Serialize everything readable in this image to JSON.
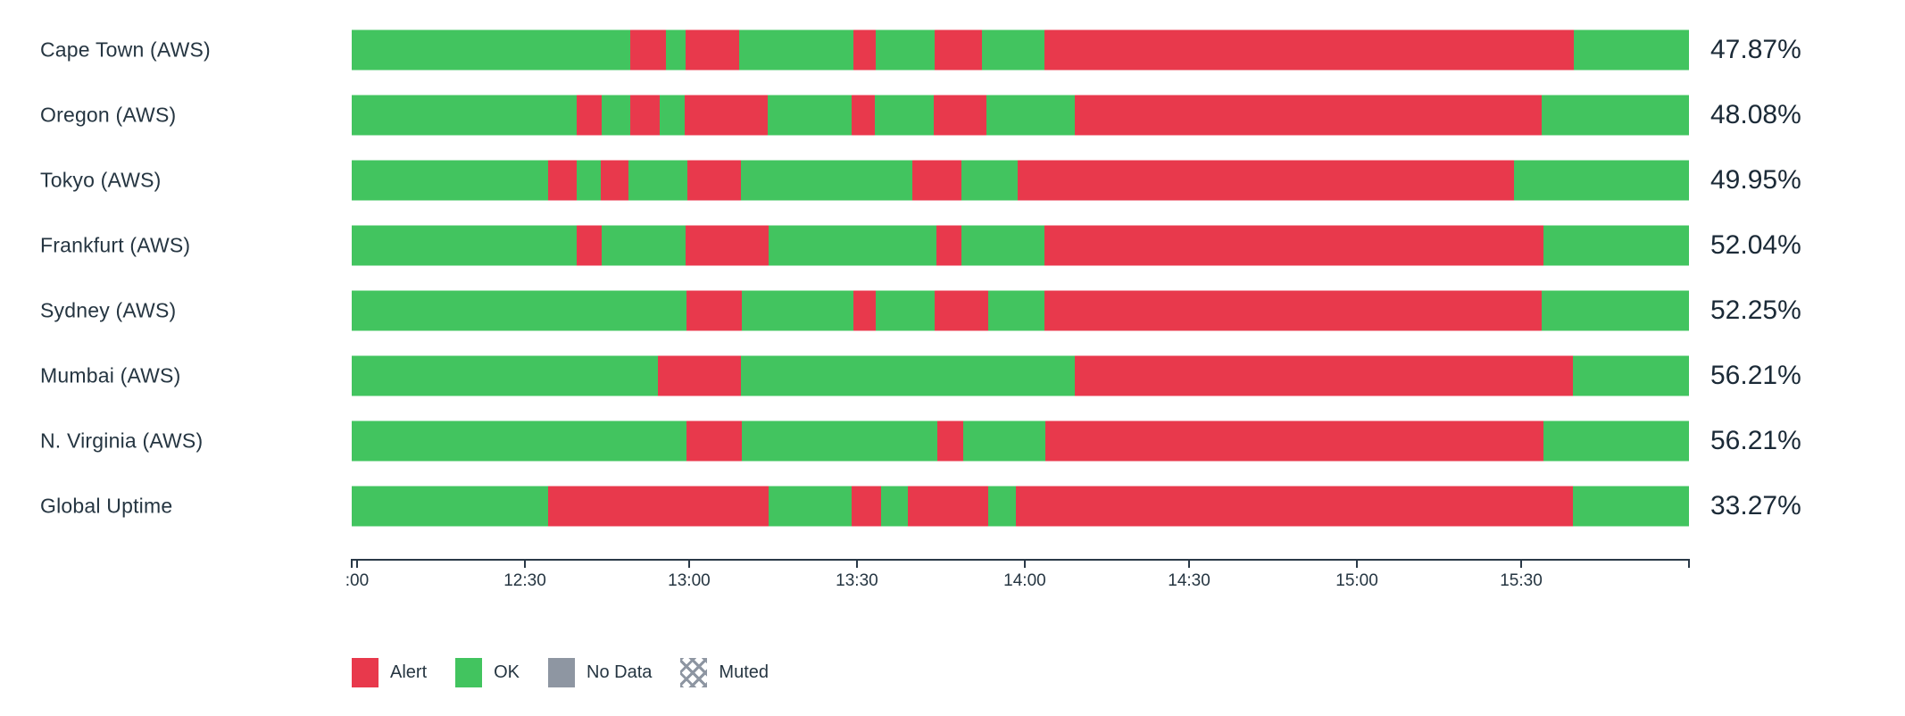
{
  "colors": {
    "alert": "#e8394c",
    "ok": "#42c45f",
    "no_data": "#8e96a2",
    "muted_hatch": "#8e96a2",
    "text": "#253541",
    "value_text": "#1b2a37",
    "axis": "#2a3947"
  },
  "chart_data": {
    "type": "bar",
    "subtype": "horizontal-status-timeline",
    "title": "",
    "xlabel": "",
    "ylabel": "",
    "legend_position": "bottom",
    "grid": false,
    "categories": [
      "Cape Town (AWS)",
      "Oregon (AWS)",
      "Tokyo (AWS)",
      "Frankfurt (AWS)",
      "Sydney (AWS)",
      "Mumbai (AWS)",
      "N. Virginia (AWS)",
      "Global Uptime"
    ],
    "uptime_values": [
      "47.87%",
      "48.08%",
      "49.95%",
      "52.04%",
      "52.25%",
      "56.21%",
      "56.21%",
      "33.27%"
    ],
    "rows": [
      {
        "label": "Cape Town (AWS)",
        "uptime": "47.87%",
        "segments": [
          [
            "ok",
            20.8
          ],
          [
            "alert",
            2.7
          ],
          [
            "ok",
            1.5
          ],
          [
            "alert",
            4.0
          ],
          [
            "ok",
            8.5
          ],
          [
            "alert",
            1.7
          ],
          [
            "ok",
            4.4
          ],
          [
            "alert",
            3.5
          ],
          [
            "ok",
            4.7
          ],
          [
            "alert",
            39.6
          ],
          [
            "ok",
            8.6
          ]
        ]
      },
      {
        "label": "Oregon (AWS)",
        "uptime": "48.08%",
        "segments": [
          [
            "ok",
            16.8
          ],
          [
            "alert",
            1.9
          ],
          [
            "ok",
            2.1
          ],
          [
            "alert",
            2.2
          ],
          [
            "ok",
            1.9
          ],
          [
            "alert",
            6.2
          ],
          [
            "ok",
            6.3
          ],
          [
            "alert",
            1.7
          ],
          [
            "ok",
            4.4
          ],
          [
            "alert",
            4.0
          ],
          [
            "ok",
            6.6
          ],
          [
            "alert",
            34.9
          ],
          [
            "ok",
            11.0
          ]
        ]
      },
      {
        "label": "Tokyo (AWS)",
        "uptime": "49.95%",
        "segments": [
          [
            "ok",
            14.7
          ],
          [
            "alert",
            2.1
          ],
          [
            "ok",
            1.8
          ],
          [
            "alert",
            2.1
          ],
          [
            "ok",
            4.4
          ],
          [
            "alert",
            4.0
          ],
          [
            "ok",
            12.8
          ],
          [
            "alert",
            3.7
          ],
          [
            "ok",
            4.2
          ],
          [
            "alert",
            37.1
          ],
          [
            "ok",
            13.1
          ]
        ]
      },
      {
        "label": "Frankfurt (AWS)",
        "uptime": "52.04%",
        "segments": [
          [
            "ok",
            16.8
          ],
          [
            "alert",
            1.9
          ],
          [
            "ok",
            6.3
          ],
          [
            "alert",
            6.2
          ],
          [
            "ok",
            12.5
          ],
          [
            "alert",
            1.9
          ],
          [
            "ok",
            6.2
          ],
          [
            "alert",
            37.3
          ],
          [
            "ok",
            10.9
          ]
        ]
      },
      {
        "label": "Sydney (AWS)",
        "uptime": "52.25%",
        "segments": [
          [
            "ok",
            25.0
          ],
          [
            "alert",
            4.2
          ],
          [
            "ok",
            8.3
          ],
          [
            "alert",
            1.7
          ],
          [
            "ok",
            4.4
          ],
          [
            "alert",
            4.0
          ],
          [
            "ok",
            4.2
          ],
          [
            "alert",
            37.2
          ],
          [
            "ok",
            11.0
          ]
        ]
      },
      {
        "label": "Mumbai (AWS)",
        "uptime": "56.21%",
        "segments": [
          [
            "ok",
            22.9
          ],
          [
            "alert",
            6.2
          ],
          [
            "ok",
            25.0
          ],
          [
            "alert",
            37.2
          ],
          [
            "ok",
            8.7
          ]
        ]
      },
      {
        "label": "N. Virginia (AWS)",
        "uptime": "56.21%",
        "segments": [
          [
            "ok",
            25.0
          ],
          [
            "alert",
            4.2
          ],
          [
            "ok",
            14.6
          ],
          [
            "alert",
            1.9
          ],
          [
            "ok",
            6.2
          ],
          [
            "alert",
            37.2
          ],
          [
            "ok",
            10.9
          ]
        ]
      },
      {
        "label": "Global Uptime",
        "uptime": "33.27%",
        "segments": [
          [
            "ok",
            14.7
          ],
          [
            "alert",
            16.5
          ],
          [
            "ok",
            6.2
          ],
          [
            "alert",
            2.2
          ],
          [
            "ok",
            2.0
          ],
          [
            "alert",
            6.0
          ],
          [
            "ok",
            2.1
          ],
          [
            "alert",
            41.6
          ],
          [
            "ok",
            8.7
          ]
        ]
      }
    ],
    "xaxis": {
      "ticks": [
        {
          "pos": 0,
          "label": ""
        },
        {
          "pos": 0.4,
          "label": ":00"
        },
        {
          "pos": 12.95,
          "label": "12:30"
        },
        {
          "pos": 25.23,
          "label": "13:00"
        },
        {
          "pos": 37.78,
          "label": "13:30"
        },
        {
          "pos": 50.33,
          "label": "14:00"
        },
        {
          "pos": 62.62,
          "label": "14:30"
        },
        {
          "pos": 75.17,
          "label": "15:00"
        },
        {
          "pos": 87.45,
          "label": "15:30"
        },
        {
          "pos": 100,
          "label": ""
        }
      ]
    },
    "legend": [
      {
        "id": "alert",
        "label": "Alert"
      },
      {
        "id": "ok",
        "label": "OK"
      },
      {
        "id": "no_data",
        "label": "No Data"
      },
      {
        "id": "muted",
        "label": "Muted"
      }
    ]
  }
}
